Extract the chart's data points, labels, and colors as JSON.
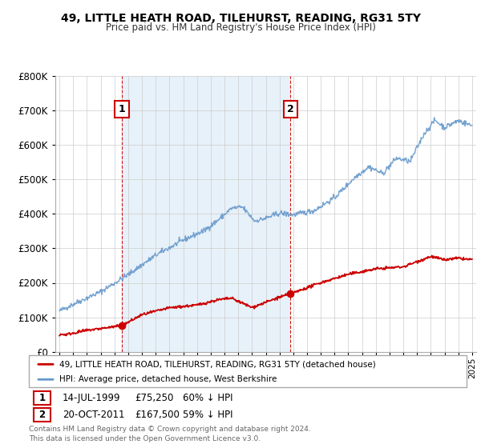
{
  "title": "49, LITTLE HEATH ROAD, TILEHURST, READING, RG31 5TY",
  "subtitle": "Price paid vs. HM Land Registry's House Price Index (HPI)",
  "legend_line1": "49, LITTLE HEATH ROAD, TILEHURST, READING, RG31 5TY (detached house)",
  "legend_line2": "HPI: Average price, detached house, West Berkshire",
  "sale1_date": "14-JUL-1999",
  "sale1_price": "£75,250",
  "sale1_hpi": "60% ↓ HPI",
  "sale2_date": "20-OCT-2011",
  "sale2_price": "£167,500",
  "sale2_hpi": "59% ↓ HPI",
  "footer": "Contains HM Land Registry data © Crown copyright and database right 2024.\nThis data is licensed under the Open Government Licence v3.0.",
  "red_color": "#cc0000",
  "blue_color": "#6699cc",
  "blue_fill_color": "#d0e4f5",
  "sale1_year": 1999.54,
  "sale1_value": 75250,
  "sale2_year": 2011.8,
  "sale2_value": 167500,
  "ylim": [
    0,
    800000
  ],
  "xlim_start": 1994.7,
  "xlim_end": 2025.3
}
